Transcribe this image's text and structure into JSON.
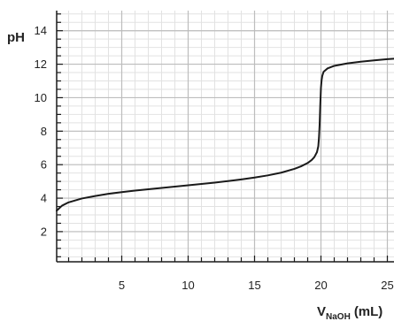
{
  "chart_data": {
    "type": "line",
    "ylabel": "pH",
    "xlabel": {
      "main": "V",
      "sub": "NaOH",
      "unit": "(mL)"
    },
    "xlim": [
      0.1,
      25.5
    ],
    "ylim": [
      0.2,
      15.2
    ],
    "x_ticks": [
      5,
      10,
      15,
      20,
      25
    ],
    "y_ticks": [
      2,
      4,
      6,
      8,
      10,
      12,
      14
    ],
    "grid": true,
    "minor_grid": true,
    "x_minor_step": 1,
    "y_minor_step": 0.5,
    "colors": {
      "line": "#1a1a1a",
      "major_grid": "#bdbdbd",
      "minor_grid": "#e2e2e2",
      "axis": "#1a1a1a"
    },
    "series": [
      {
        "x": [
          0.1,
          0.5,
          1,
          2,
          3,
          4,
          5,
          6,
          7,
          8,
          9,
          10,
          11,
          12,
          13,
          14,
          15,
          16,
          17,
          18,
          18.5,
          19,
          19.3,
          19.5,
          19.7,
          19.8,
          19.85,
          19.9,
          19.95,
          20.0,
          20.05,
          20.1,
          20.2,
          20.5,
          21,
          22,
          23,
          24,
          25,
          25.5
        ],
        "y": [
          3.25,
          3.55,
          3.75,
          3.98,
          4.13,
          4.26,
          4.36,
          4.45,
          4.53,
          4.61,
          4.69,
          4.77,
          4.85,
          4.93,
          5.02,
          5.12,
          5.23,
          5.36,
          5.52,
          5.75,
          5.9,
          6.1,
          6.28,
          6.45,
          6.75,
          7.1,
          7.6,
          8.4,
          9.6,
          10.6,
          11.05,
          11.3,
          11.55,
          11.75,
          11.9,
          12.05,
          12.15,
          12.23,
          12.3,
          12.33
        ]
      }
    ]
  }
}
